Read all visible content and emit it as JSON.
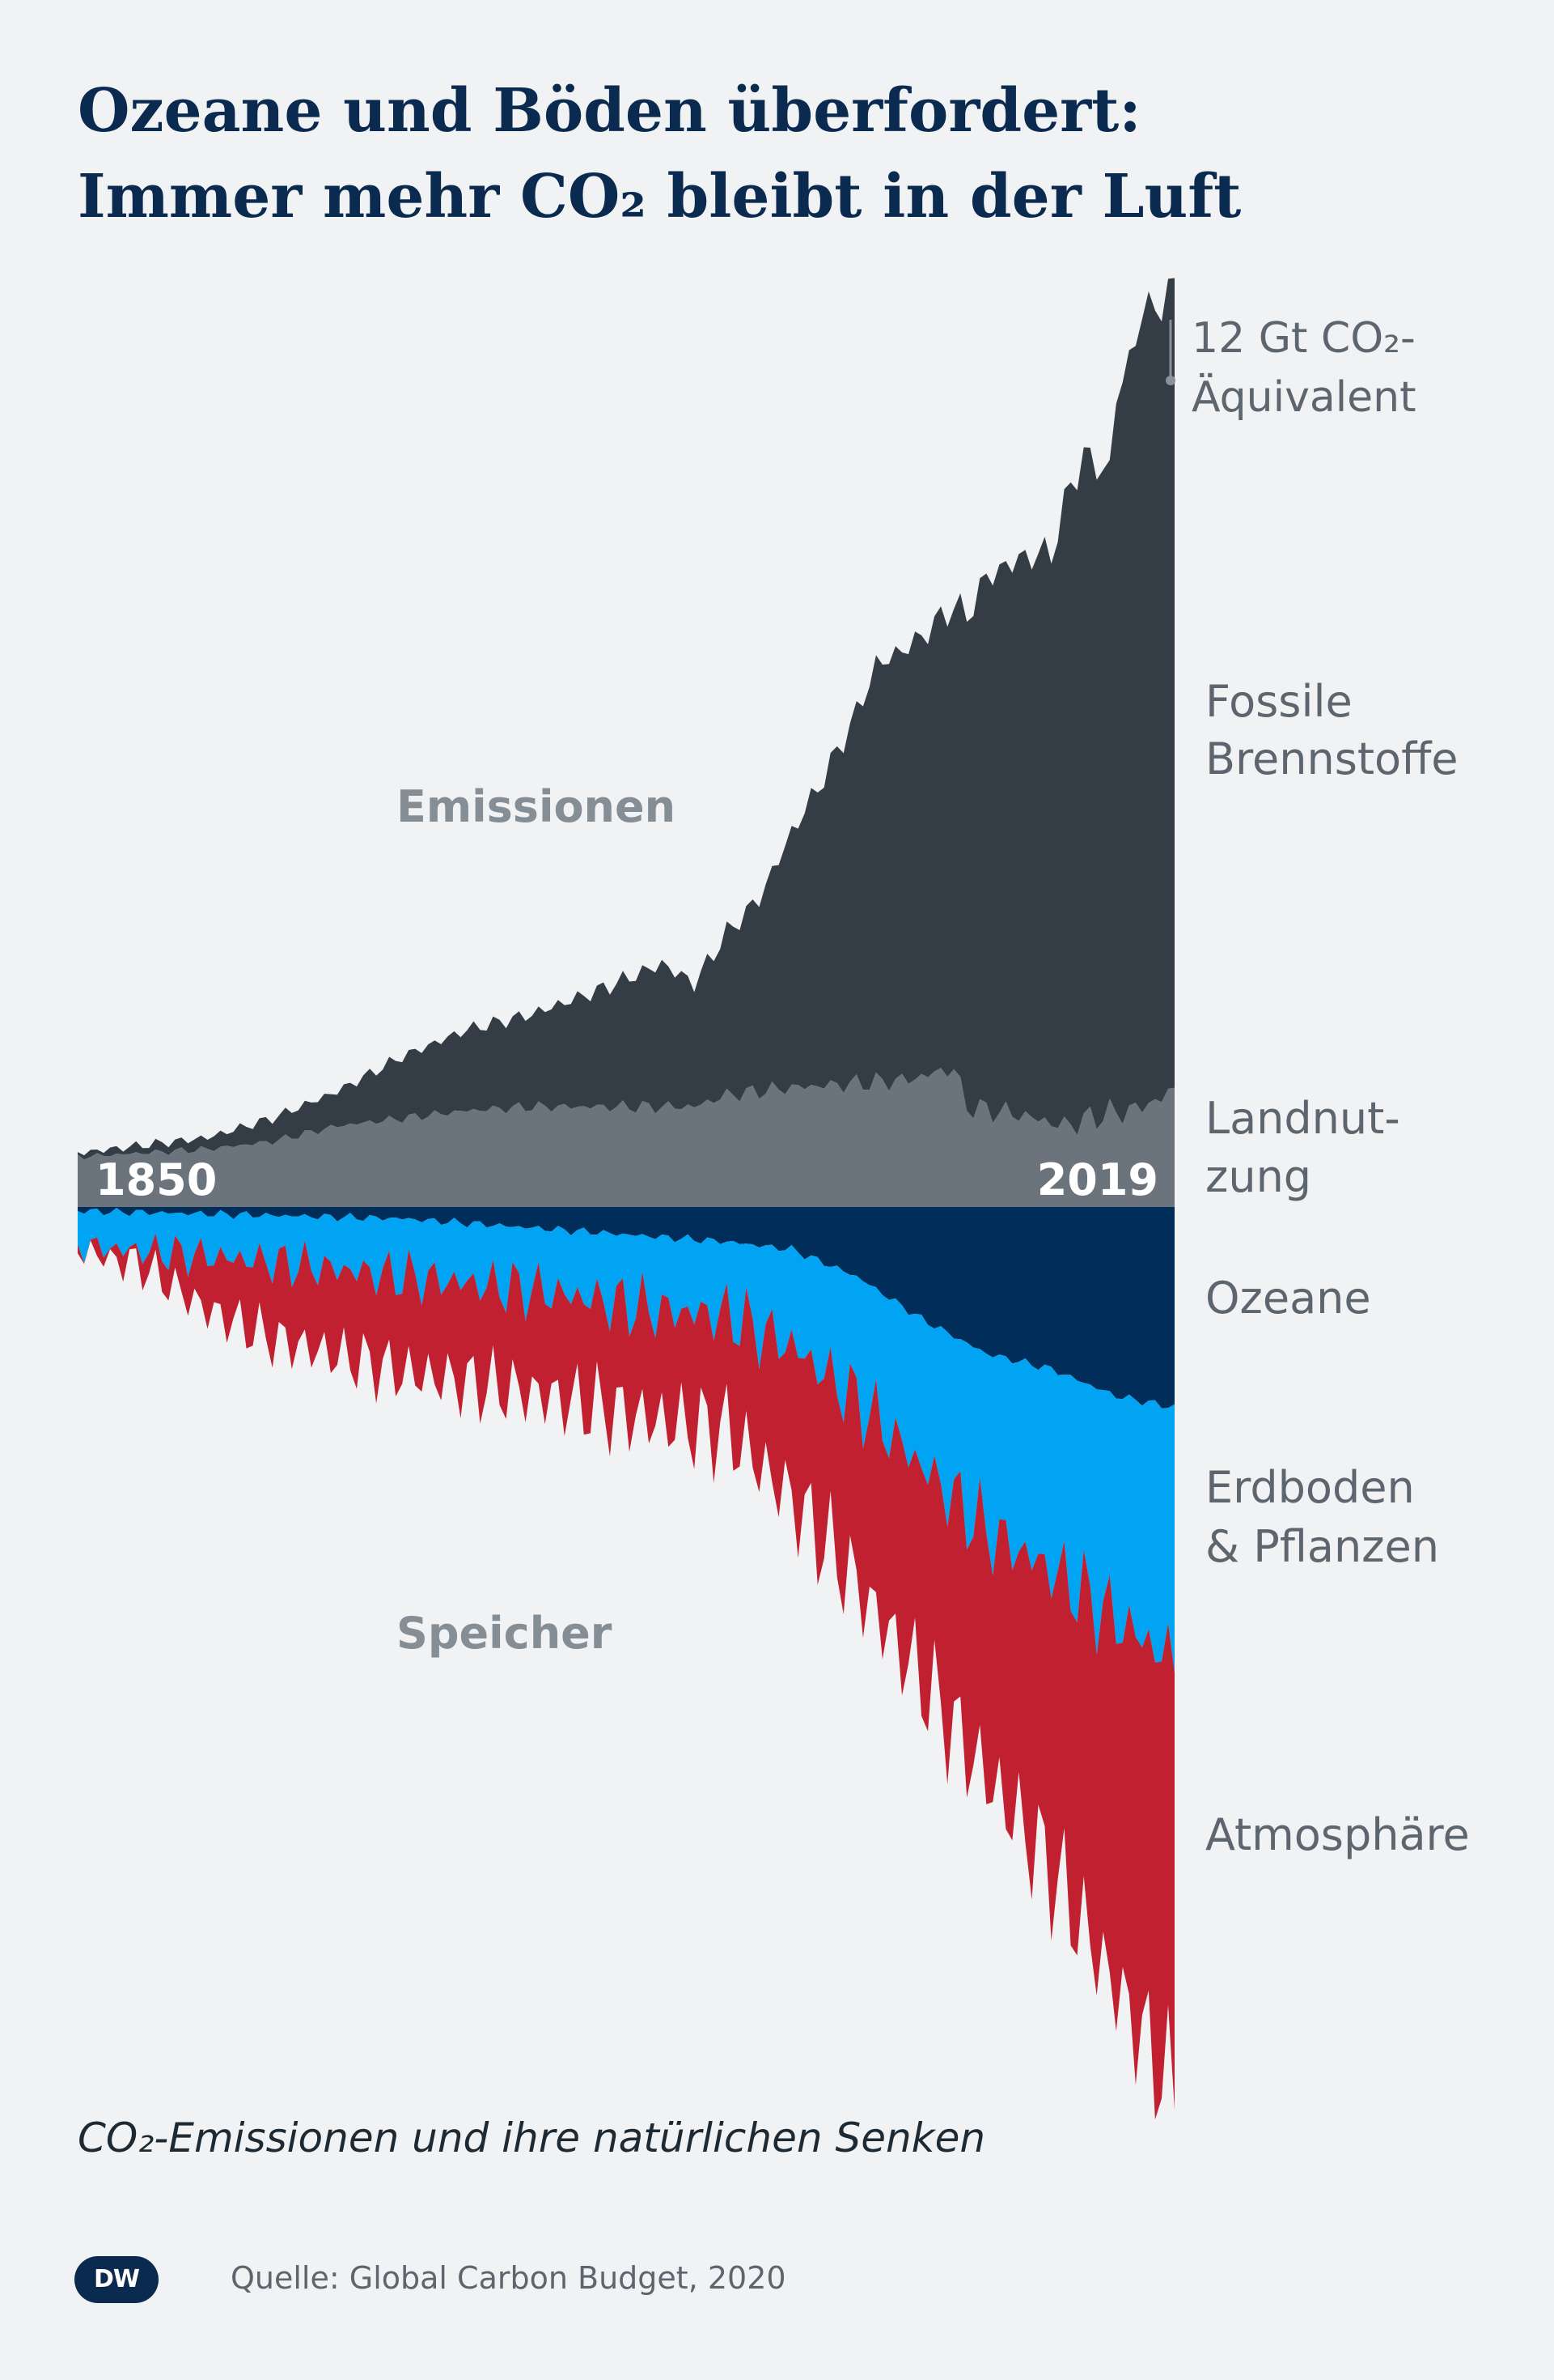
{
  "header": {
    "title_line1": "Ozeane und Böden überfordert:",
    "title_line2": "Immer mehr CO₂ bleibt in der Luft"
  },
  "footer": {
    "subtitle": "CO₂-Emissionen und ihre natürlichen Senken",
    "logo": "DW",
    "source": "Quelle: Global Carbon Budget, 2020"
  },
  "colors": {
    "background": "#f1f2f4",
    "fossil": "#343d45",
    "landuse": "#6b747c",
    "ocean": "#002d5a",
    "land_sink": "#00a4f2",
    "atmosphere": "#c0202f",
    "section_label": "#858d95",
    "label": "#5d666e",
    "year_label": "#ffffff"
  },
  "chart_data": {
    "type": "area",
    "subtype": "diverging stacked area (streamgraph)",
    "x_range": [
      1850,
      2019
    ],
    "x_tick_labels": [
      "1850",
      "2019"
    ],
    "unit": "Gt CO₂-Äquivalent",
    "scale_annotation": "12 Gt CO₂-Äquivalent",
    "scale_max_gt": 12,
    "section_labels": {
      "upper": "Emissionen",
      "lower": "Speicher"
    },
    "upper_series": [
      {
        "name": "Landnutzung",
        "label": [
          "Landnut-",
          "zung"
        ],
        "color": "#6b747c",
        "anchors": [
          [
            1850,
            0.65
          ],
          [
            1870,
            0.75
          ],
          [
            1880,
            0.85
          ],
          [
            1890,
            1.05
          ],
          [
            1900,
            1.15
          ],
          [
            1910,
            1.25
          ],
          [
            1920,
            1.3
          ],
          [
            1930,
            1.3
          ],
          [
            1945,
            1.3
          ],
          [
            1950,
            1.45
          ],
          [
            1960,
            1.55
          ],
          [
            1970,
            1.6
          ],
          [
            1978,
            1.65
          ],
          [
            1985,
            1.8
          ],
          [
            1987,
            1.3
          ],
          [
            1995,
            1.2
          ],
          [
            2002,
            1.05
          ],
          [
            2008,
            1.2
          ],
          [
            2012,
            1.25
          ],
          [
            2014,
            1.3
          ],
          [
            2019,
            1.5
          ]
        ]
      },
      {
        "name": "Fossile Brennstoffe",
        "label": [
          "Fossile",
          "Brennstoffe"
        ],
        "color": "#343d45",
        "anchors": [
          [
            1850,
            0.05
          ],
          [
            1870,
            0.15
          ],
          [
            1880,
            0.3
          ],
          [
            1890,
            0.45
          ],
          [
            1900,
            0.8
          ],
          [
            1910,
            1.05
          ],
          [
            1920,
            1.2
          ],
          [
            1930,
            1.5
          ],
          [
            1940,
            1.85
          ],
          [
            1945,
            1.6
          ],
          [
            1950,
            2.1
          ],
          [
            1955,
            2.5
          ],
          [
            1960,
            3.3
          ],
          [
            1965,
            4.0
          ],
          [
            1970,
            4.8
          ],
          [
            1973,
            5.4
          ],
          [
            1980,
            5.7
          ],
          [
            1985,
            6.0
          ],
          [
            1990,
            6.9
          ],
          [
            1995,
            7.2
          ],
          [
            2000,
            7.4
          ],
          [
            2003,
            8.3
          ],
          [
            2005,
            8.6
          ],
          [
            2009,
            8.3
          ],
          [
            2010,
            9.3
          ],
          [
            2012,
            9.7
          ],
          [
            2014,
            10.3
          ],
          [
            2017,
            10.3
          ],
          [
            2019,
            10.4
          ]
        ]
      }
    ],
    "lower_series": [
      {
        "name": "Ozeane",
        "label": [
          "Ozeane"
        ],
        "color": "#002d5a",
        "anchors": [
          [
            1850,
            0.05
          ],
          [
            1900,
            0.15
          ],
          [
            1950,
            0.45
          ],
          [
            1960,
            0.55
          ],
          [
            1970,
            0.9
          ],
          [
            1980,
            1.45
          ],
          [
            1990,
            1.9
          ],
          [
            2000,
            2.1
          ],
          [
            2010,
            2.45
          ],
          [
            2019,
            2.6
          ]
        ]
      },
      {
        "name": "Erdboden & Pflanzen",
        "label": [
          "Erdboden",
          "& Pflanzen"
        ],
        "color": "#00a4f2",
        "anchors": [
          [
            1850,
            0.45
          ],
          [
            1880,
            0.6
          ],
          [
            1900,
            0.75
          ],
          [
            1920,
            0.8
          ],
          [
            1940,
            0.95
          ],
          [
            1950,
            0.95
          ],
          [
            1960,
            1.25
          ],
          [
            1970,
            1.6
          ],
          [
            1980,
            1.9
          ],
          [
            1990,
            2.3
          ],
          [
            2000,
            2.6
          ],
          [
            2010,
            2.9
          ],
          [
            2019,
            3.3
          ]
        ]
      },
      {
        "name": "Atmosphäre",
        "label": [
          "Atmosphäre"
        ],
        "color": "#c0202f",
        "anchors": [
          [
            1850,
            0.0
          ],
          [
            1860,
            0.2
          ],
          [
            1870,
            0.7
          ],
          [
            1880,
            1.0
          ],
          [
            1900,
            1.25
          ],
          [
            1920,
            1.35
          ],
          [
            1940,
            1.45
          ],
          [
            1950,
            1.5
          ],
          [
            1960,
            2.0
          ],
          [
            1970,
            2.4
          ],
          [
            1980,
            2.8
          ],
          [
            1990,
            3.2
          ],
          [
            2000,
            3.9
          ],
          [
            2010,
            4.8
          ],
          [
            2019,
            5.6
          ]
        ]
      }
    ],
    "grid": false,
    "legend": "direct labels on the right"
  }
}
